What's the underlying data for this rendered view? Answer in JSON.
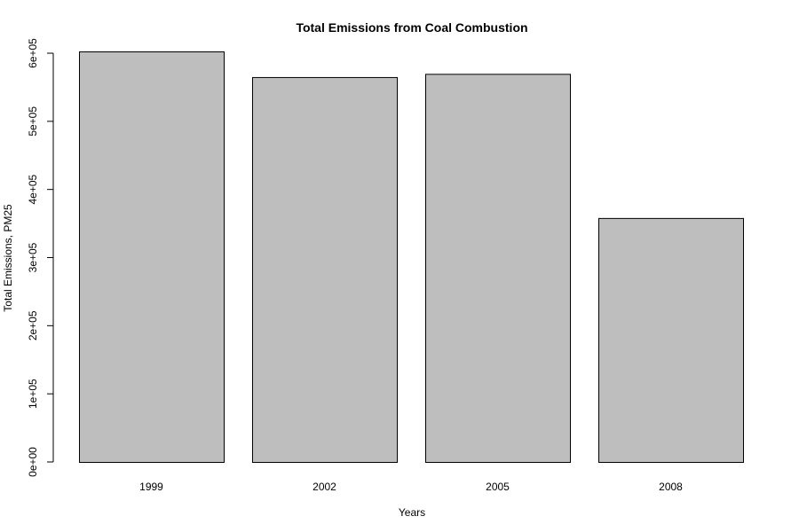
{
  "chart_data": {
    "type": "bar",
    "title": "Total Emissions from Coal Combustion",
    "xlabel": "Years",
    "ylabel": "Total Emissions, PM25",
    "categories": [
      "1999",
      "2002",
      "2005",
      "2008"
    ],
    "values": [
      602624,
      564940,
      569654,
      358084
    ],
    "ylim": [
      0,
      600000
    ],
    "yticks": [
      0,
      100000,
      200000,
      300000,
      400000,
      500000,
      600000
    ],
    "ytick_labels": [
      "0e+00",
      "1e+05",
      "2e+05",
      "3e+05",
      "4e+05",
      "5e+05",
      "6e+05"
    ],
    "grid": false,
    "bar_color": "#bebebe",
    "bar_border_color": "#000000"
  }
}
